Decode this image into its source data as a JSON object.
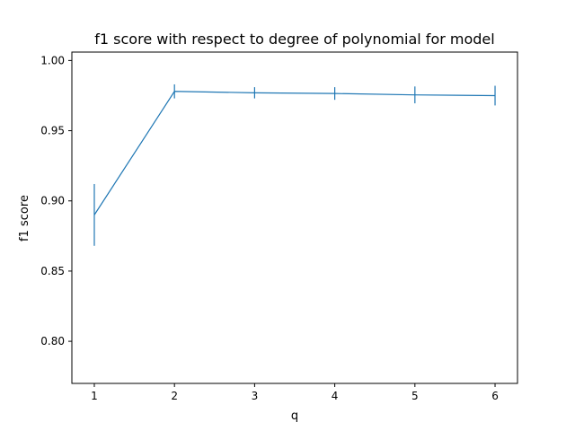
{
  "chart_data": {
    "type": "line",
    "title": "f1 score with respect to degree of polynomial for model",
    "xlabel": "q",
    "ylabel": "f1 score",
    "x": [
      1,
      2,
      3,
      4,
      5,
      6
    ],
    "series": [
      {
        "values": [
          0.89,
          0.978,
          0.977,
          0.9765,
          0.9755,
          0.975
        ],
        "error": [
          0.022,
          0.005,
          0.004,
          0.0045,
          0.006,
          0.007
        ]
      }
    ],
    "xticks": [
      "1",
      "2",
      "3",
      "4",
      "5",
      "6"
    ],
    "yticks": [
      "0.80",
      "0.85",
      "0.90",
      "0.95",
      "1.00"
    ],
    "xlim": [
      0.72,
      6.28
    ],
    "ylim": [
      0.77,
      1.006
    ],
    "grid": false,
    "line_color": "#1f77b4"
  }
}
